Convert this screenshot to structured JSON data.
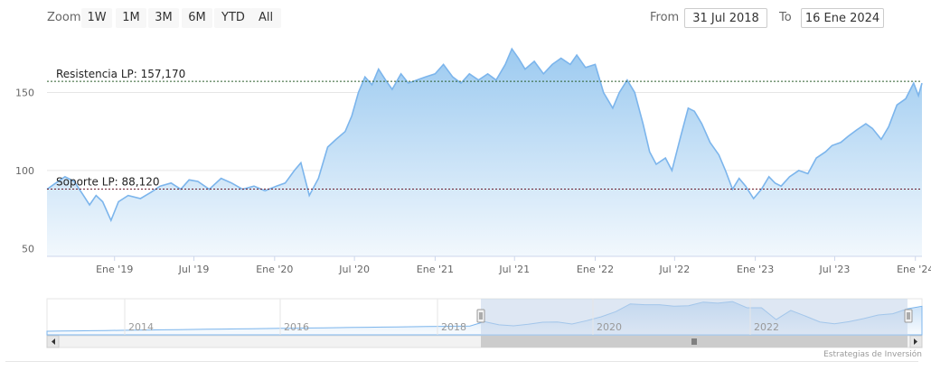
{
  "toolbar": {
    "zoom_label": "Zoom",
    "zoom_buttons": [
      "1W",
      "1M",
      "3M",
      "6M",
      "YTD",
      "All"
    ],
    "from_label": "From",
    "from_value": "31 Jul 2018",
    "to_label": "To",
    "to_value": "16 Ene 2024"
  },
  "credit": "Estrategias de Inversión",
  "colors": {
    "line": "#7cb5ec",
    "area_top": "#9ccaf0",
    "area_bottom": "#f2f8fd",
    "resistance": "#2b5d2b",
    "support": "#6b1d2c",
    "navigator_mask": "#c3d4ea"
  },
  "chart_data": {
    "type": "area",
    "x_ticks": [
      "Ene '19",
      "Jul '19",
      "Ene '20",
      "Jul '20",
      "Ene '21",
      "Jul '21",
      "Ene '22",
      "Jul '22",
      "Ene '23",
      "Jul '23",
      "Ene '24"
    ],
    "y_ticks": [
      50,
      100,
      150
    ],
    "ylim": [
      45,
      185
    ],
    "xlim": [
      "2018-07-31",
      "2024-01-16"
    ],
    "grid": true,
    "annotations": [
      {
        "label": "Resistencia LP: 157,170",
        "value": 157.17
      },
      {
        "label": "Soporte LP: 88,120",
        "value": 88.12
      }
    ],
    "series": [
      {
        "points": [
          [
            "2018-07-31",
            88
          ],
          [
            "2018-08-20",
            92
          ],
          [
            "2018-09-10",
            96
          ],
          [
            "2018-10-01",
            93
          ],
          [
            "2018-10-20",
            85
          ],
          [
            "2018-11-05",
            78
          ],
          [
            "2018-11-20",
            84
          ],
          [
            "2018-12-05",
            80
          ],
          [
            "2018-12-24",
            68
          ],
          [
            "2019-01-10",
            80
          ],
          [
            "2019-02-01",
            84
          ],
          [
            "2019-03-01",
            82
          ],
          [
            "2019-03-25",
            86
          ],
          [
            "2019-04-15",
            90
          ],
          [
            "2019-05-10",
            92
          ],
          [
            "2019-06-01",
            88
          ],
          [
            "2019-06-20",
            94
          ],
          [
            "2019-07-10",
            93
          ],
          [
            "2019-08-05",
            88
          ],
          [
            "2019-09-01",
            95
          ],
          [
            "2019-09-25",
            92
          ],
          [
            "2019-10-20",
            88
          ],
          [
            "2019-11-15",
            90
          ],
          [
            "2019-12-10",
            87
          ],
          [
            "2020-01-05",
            90
          ],
          [
            "2020-01-25",
            92
          ],
          [
            "2020-02-15",
            100
          ],
          [
            "2020-03-01",
            105
          ],
          [
            "2020-03-20",
            84
          ],
          [
            "2020-04-10",
            95
          ],
          [
            "2020-05-01",
            115
          ],
          [
            "2020-05-20",
            120
          ],
          [
            "2020-06-10",
            125
          ],
          [
            "2020-06-25",
            135
          ],
          [
            "2020-07-10",
            150
          ],
          [
            "2020-07-25",
            160
          ],
          [
            "2020-08-10",
            155
          ],
          [
            "2020-08-25",
            165
          ],
          [
            "2020-09-10",
            158
          ],
          [
            "2020-09-25",
            152
          ],
          [
            "2020-10-15",
            162
          ],
          [
            "2020-11-01",
            156
          ],
          [
            "2020-11-20",
            158
          ],
          [
            "2020-12-10",
            160
          ],
          [
            "2021-01-01",
            162
          ],
          [
            "2021-01-20",
            168
          ],
          [
            "2021-02-10",
            160
          ],
          [
            "2021-03-01",
            156
          ],
          [
            "2021-03-20",
            162
          ],
          [
            "2021-04-10",
            158
          ],
          [
            "2021-05-01",
            162
          ],
          [
            "2021-05-20",
            158
          ],
          [
            "2021-06-10",
            168
          ],
          [
            "2021-06-25",
            178
          ],
          [
            "2021-07-10",
            172
          ],
          [
            "2021-07-25",
            165
          ],
          [
            "2021-08-15",
            170
          ],
          [
            "2021-09-05",
            162
          ],
          [
            "2021-09-25",
            168
          ],
          [
            "2021-10-15",
            172
          ],
          [
            "2021-11-05",
            168
          ],
          [
            "2021-11-20",
            174
          ],
          [
            "2021-12-10",
            166
          ],
          [
            "2022-01-01",
            168
          ],
          [
            "2022-01-20",
            150
          ],
          [
            "2022-02-10",
            140
          ],
          [
            "2022-02-25",
            150
          ],
          [
            "2022-03-15",
            158
          ],
          [
            "2022-04-01",
            150
          ],
          [
            "2022-04-20",
            130
          ],
          [
            "2022-05-05",
            112
          ],
          [
            "2022-05-20",
            104
          ],
          [
            "2022-06-10",
            108
          ],
          [
            "2022-06-25",
            100
          ],
          [
            "2022-07-15",
            122
          ],
          [
            "2022-08-01",
            140
          ],
          [
            "2022-08-15",
            138
          ],
          [
            "2022-09-01",
            130
          ],
          [
            "2022-09-20",
            118
          ],
          [
            "2022-10-10",
            110
          ],
          [
            "2022-10-25",
            100
          ],
          [
            "2022-11-10",
            88
          ],
          [
            "2022-11-25",
            95
          ],
          [
            "2022-12-10",
            90
          ],
          [
            "2022-12-28",
            82
          ],
          [
            "2023-01-15",
            88
          ],
          [
            "2023-02-01",
            96
          ],
          [
            "2023-02-15",
            92
          ],
          [
            "2023-03-01",
            90
          ],
          [
            "2023-03-20",
            96
          ],
          [
            "2023-04-10",
            100
          ],
          [
            "2023-05-01",
            98
          ],
          [
            "2023-05-20",
            108
          ],
          [
            "2023-06-10",
            112
          ],
          [
            "2023-06-25",
            116
          ],
          [
            "2023-07-15",
            118
          ],
          [
            "2023-08-01",
            122
          ],
          [
            "2023-08-20",
            126
          ],
          [
            "2023-09-10",
            130
          ],
          [
            "2023-09-25",
            127
          ],
          [
            "2023-10-15",
            120
          ],
          [
            "2023-11-01",
            128
          ],
          [
            "2023-11-20",
            142
          ],
          [
            "2023-12-10",
            146
          ],
          [
            "2023-12-28",
            156
          ],
          [
            "2024-01-08",
            148
          ],
          [
            "2024-01-16",
            156
          ]
        ]
      }
    ],
    "navigator": {
      "year_labels": [
        "2014",
        "2016",
        "2018",
        "2020",
        "2022"
      ]
    }
  }
}
